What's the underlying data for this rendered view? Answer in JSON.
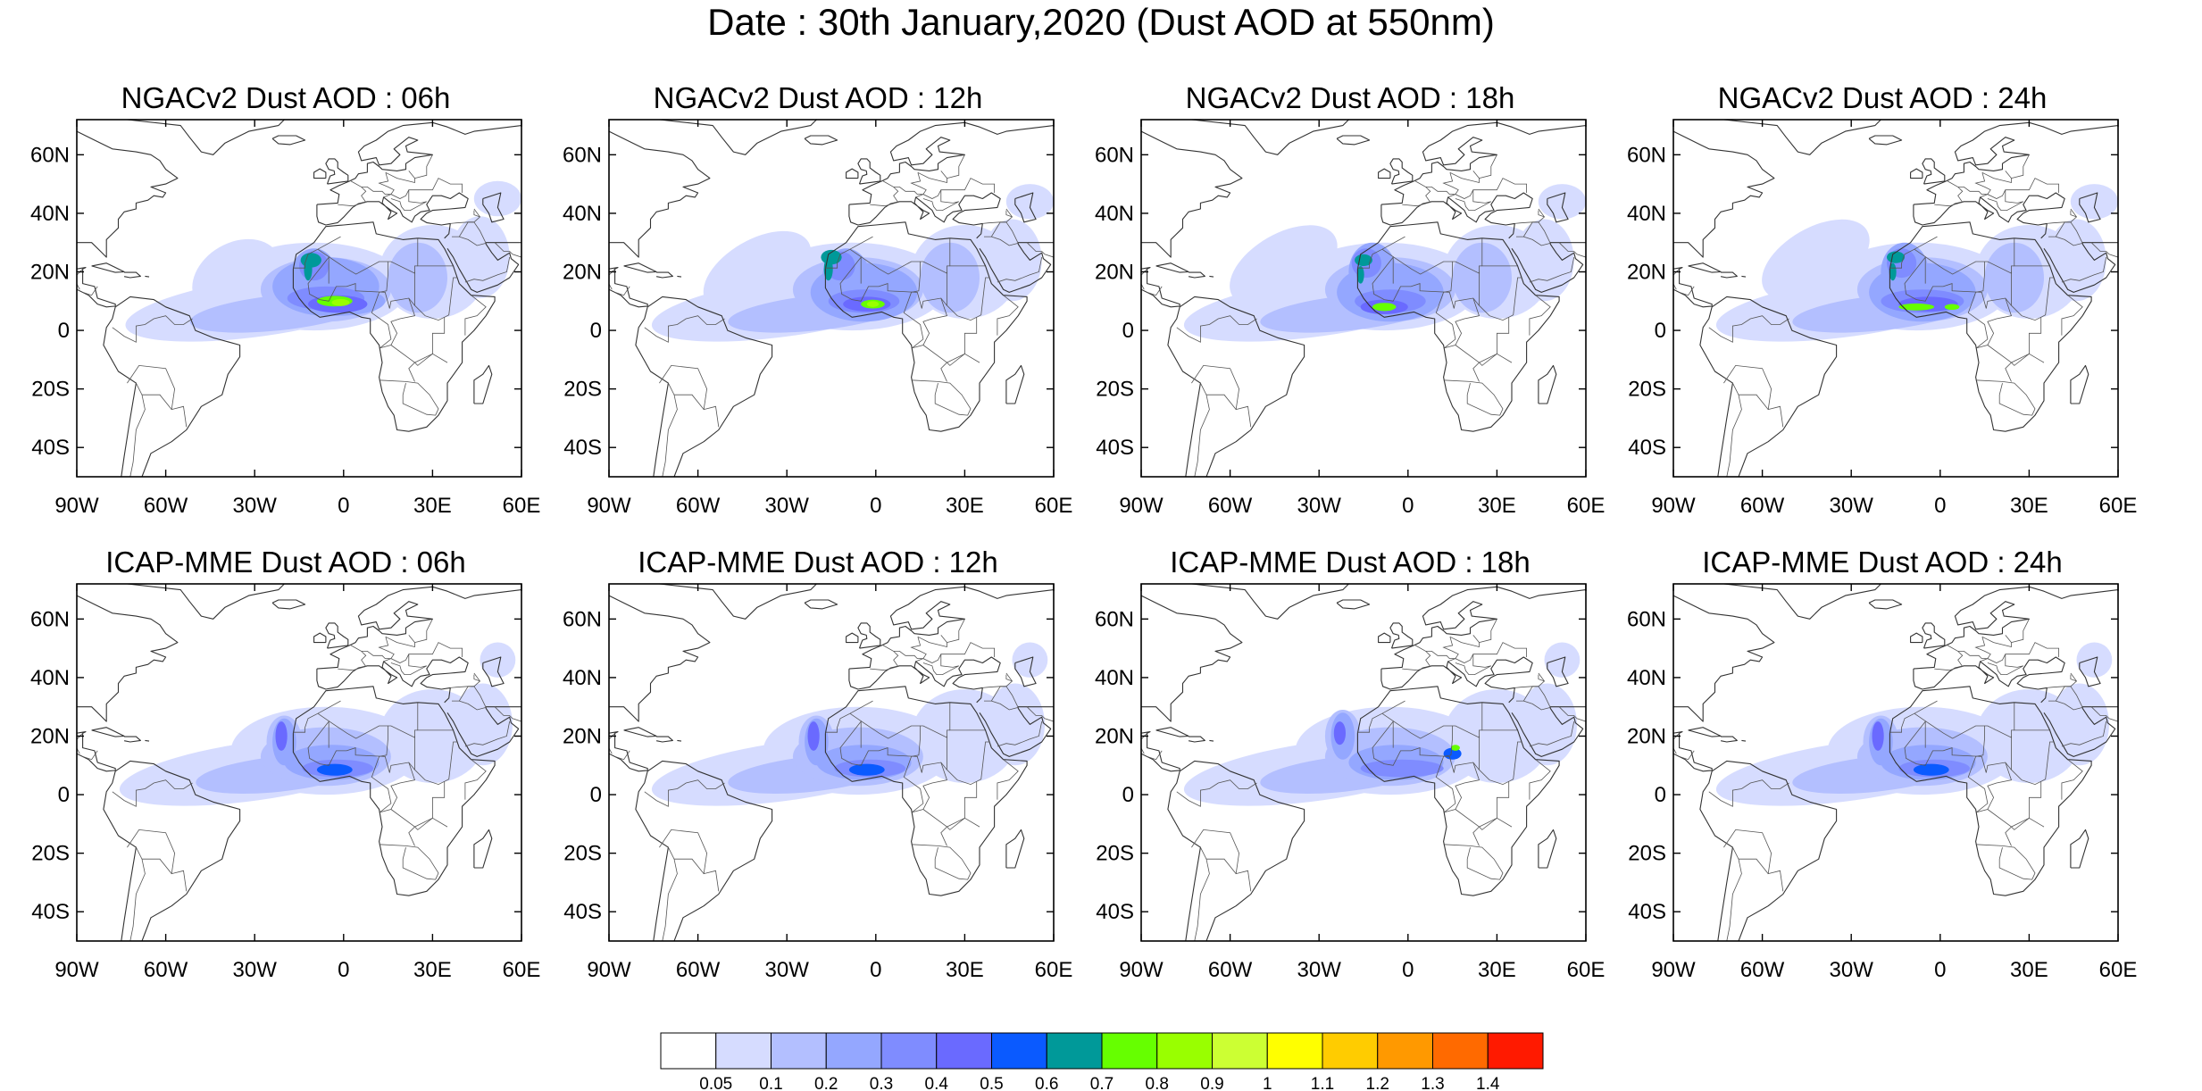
{
  "main_title": "Date : 30th January,2020 (Dust AOD at 550nm)",
  "axes": {
    "lon_ticks": [
      "90W",
      "60W",
      "30W",
      "0",
      "30E",
      "60E"
    ],
    "lat_ticks": [
      "60N",
      "40N",
      "20N",
      "0",
      "20S",
      "40S"
    ]
  },
  "panels": [
    {
      "title": "NGACv2 Dust AOD : 06h",
      "model": "NGACv2",
      "hour": "06h"
    },
    {
      "title": "NGACv2 Dust AOD : 12h",
      "model": "NGACv2",
      "hour": "12h"
    },
    {
      "title": "NGACv2 Dust AOD : 18h",
      "model": "NGACv2",
      "hour": "18h"
    },
    {
      "title": "NGACv2 Dust AOD : 24h",
      "model": "NGACv2",
      "hour": "24h"
    },
    {
      "title": "ICAP-MME Dust AOD : 06h",
      "model": "ICAP-MME",
      "hour": "06h"
    },
    {
      "title": "ICAP-MME Dust AOD : 12h",
      "model": "ICAP-MME",
      "hour": "12h"
    },
    {
      "title": "ICAP-MME Dust AOD : 18h",
      "model": "ICAP-MME",
      "hour": "18h"
    },
    {
      "title": "ICAP-MME Dust AOD : 24h",
      "model": "ICAP-MME",
      "hour": "24h"
    }
  ],
  "colorbar": {
    "labels": [
      "0.05",
      "0.1",
      "0.2",
      "0.3",
      "0.4",
      "0.5",
      "0.6",
      "0.7",
      "0.8",
      "0.9",
      "1",
      "1.1",
      "1.2",
      "1.3",
      "1.4"
    ],
    "colors": [
      "#ffffff",
      "#d6dcff",
      "#b3bfff",
      "#94a7ff",
      "#7f8cff",
      "#6a6aff",
      "#0a5aff",
      "#009999",
      "#66ff00",
      "#99ff00",
      "#ccff33",
      "#ffff00",
      "#ffcc00",
      "#ff9900",
      "#ff6a00",
      "#ff1a00"
    ]
  }
}
